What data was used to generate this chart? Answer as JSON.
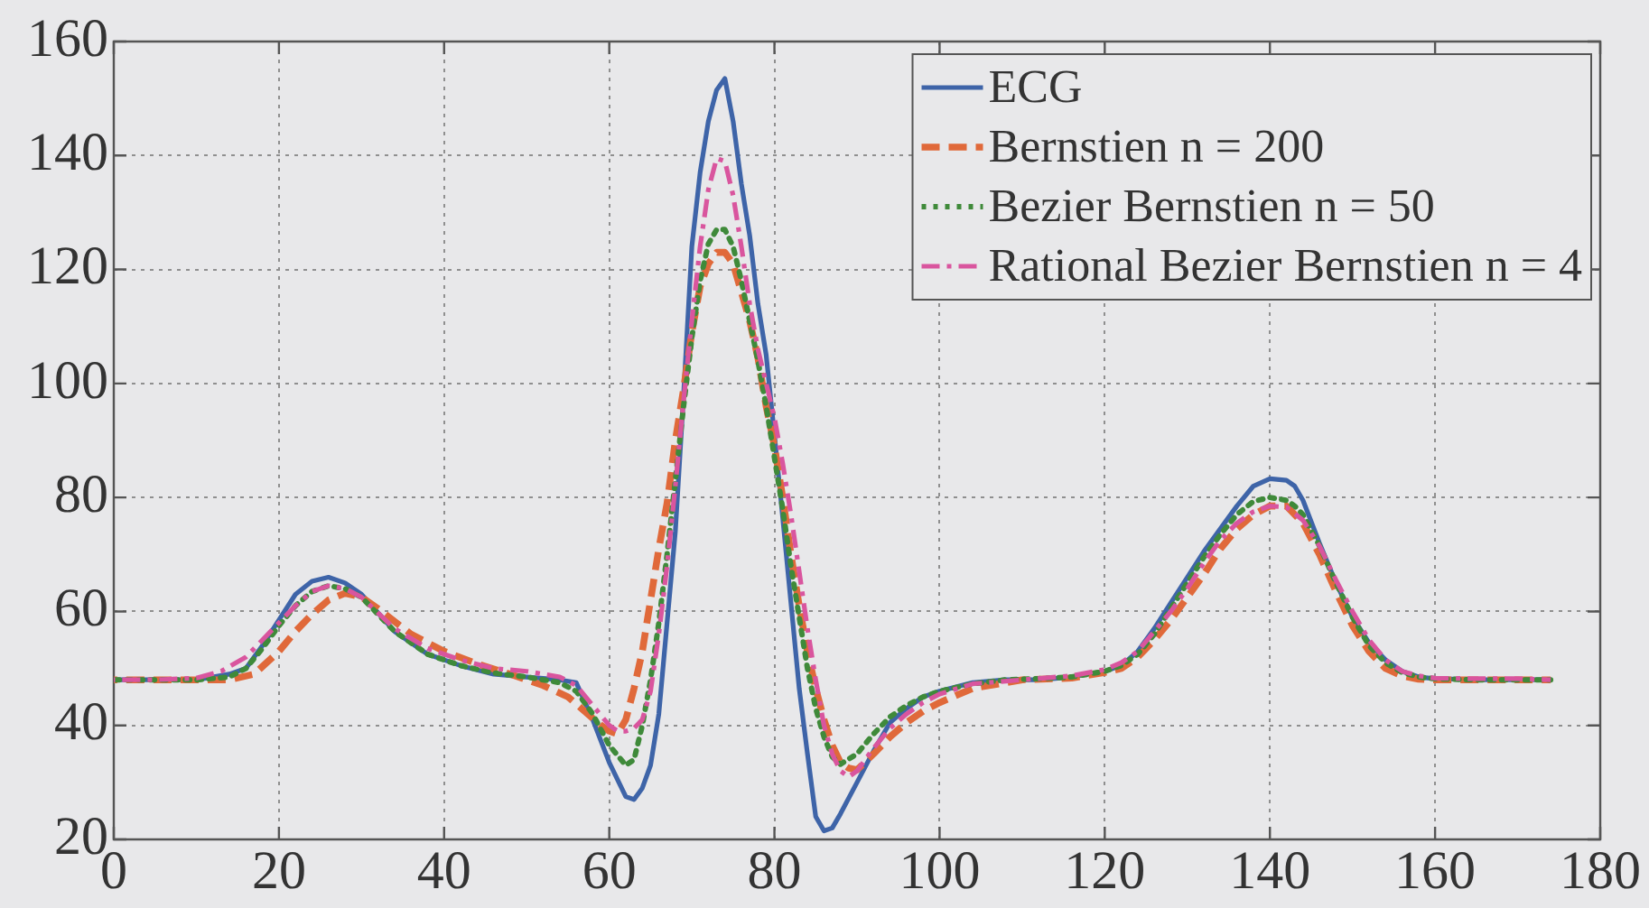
{
  "chart_data": {
    "type": "line",
    "xlim": [
      0,
      180
    ],
    "ylim": [
      20,
      160
    ],
    "xticks": [
      0,
      20,
      40,
      60,
      80,
      100,
      120,
      140,
      160,
      180
    ],
    "yticks": [
      20,
      40,
      60,
      80,
      100,
      120,
      140,
      160
    ],
    "grid": true,
    "legend": "top right",
    "series": [
      {
        "name": "ECG",
        "color": "#3e64a8",
        "line_style": "solid",
        "x": [
          0,
          5,
          10,
          14,
          16,
          18,
          20,
          22,
          24,
          26,
          28,
          30,
          34,
          38,
          42,
          46,
          50,
          54,
          56,
          58,
          60,
          62,
          63,
          64,
          65,
          66,
          67,
          68,
          69,
          70,
          71,
          72,
          73,
          74,
          75,
          76,
          77,
          78,
          79,
          80,
          81,
          82,
          83,
          84,
          85,
          86,
          87,
          88,
          90,
          92,
          94,
          96,
          98,
          100,
          104,
          108,
          112,
          116,
          120,
          122,
          124,
          126,
          128,
          130,
          132,
          134,
          136,
          138,
          140,
          142,
          143,
          144,
          146,
          148,
          150,
          152,
          154,
          156,
          158,
          160,
          165,
          170,
          174
        ],
        "values": [
          48,
          48,
          48,
          49,
          50,
          54,
          58.5,
          63,
          65.3,
          66,
          65,
          63,
          56.5,
          52.5,
          50.5,
          49,
          48.5,
          48,
          47.5,
          41,
          33.5,
          27.5,
          27,
          29,
          33,
          42,
          58,
          74,
          98,
          124,
          137,
          146,
          151.5,
          153.5,
          146,
          135,
          126,
          114,
          105,
          91,
          76.5,
          61.5,
          46.5,
          35,
          24,
          21.5,
          22,
          24.5,
          30,
          35.5,
          40.5,
          43,
          45,
          46,
          47.5,
          48,
          48,
          48.5,
          49.5,
          50.5,
          53,
          57,
          61.5,
          66,
          70.5,
          74.5,
          78.5,
          82,
          83.3,
          83,
          82,
          79.5,
          72,
          65,
          59,
          54.5,
          51.5,
          49.5,
          48.5,
          48.2,
          48,
          48,
          48
        ]
      },
      {
        "name": "Bernstien n = 200",
        "color": "#e0693a",
        "line_style": "dashed",
        "x": [
          0,
          5,
          10,
          14,
          17,
          20,
          22,
          24,
          26,
          28,
          30,
          32,
          36,
          40,
          44,
          48,
          52,
          55,
          57,
          59,
          60,
          61,
          62,
          63,
          64,
          65,
          66,
          67,
          68,
          69,
          70,
          71,
          72,
          73,
          74,
          75,
          76,
          77,
          78,
          79,
          80,
          81,
          82,
          83,
          84,
          85,
          86,
          87,
          88,
          89,
          90,
          92,
          94,
          96,
          98,
          100,
          104,
          110,
          116,
          120,
          122,
          124,
          126,
          128,
          130,
          132,
          134,
          136,
          138,
          140,
          142,
          144,
          146,
          148,
          150,
          152,
          154,
          156,
          158,
          160,
          165,
          170,
          174
        ],
        "values": [
          48,
          48,
          48,
          48,
          49,
          53,
          56.5,
          59.5,
          62,
          63.2,
          62.5,
          60.5,
          56,
          53,
          50.8,
          49,
          47,
          45,
          42.5,
          40,
          39,
          38.5,
          41,
          46.5,
          53,
          62,
          71,
          79,
          90,
          99,
          109,
          117,
          121,
          123,
          123,
          121,
          116,
          111,
          104.5,
          96,
          89,
          80,
          70,
          61,
          53,
          46.5,
          41,
          36.5,
          33.5,
          32.5,
          32.2,
          35,
          38,
          40.5,
          42.5,
          44,
          46.5,
          48,
          48.3,
          49.3,
          50,
          52,
          55,
          58.5,
          62.5,
          66.5,
          71,
          74.5,
          77,
          78.5,
          78.5,
          75.5,
          70,
          63.5,
          57.5,
          53,
          50,
          48.7,
          48.1,
          48,
          48,
          48,
          48
        ]
      },
      {
        "name": "Bezier Bernstien n = 50",
        "color": "#3f8a3a",
        "line_style": "dotted",
        "x": [
          0,
          5,
          10,
          14,
          16,
          18,
          20,
          22,
          24,
          26,
          28,
          30,
          34,
          38,
          42,
          46,
          50,
          54,
          56,
          58,
          60,
          62,
          63,
          64,
          65,
          66,
          67,
          68,
          69,
          70,
          71,
          72,
          73,
          74,
          75,
          76,
          77,
          78,
          79,
          80,
          81,
          82,
          83,
          84,
          85,
          86,
          87,
          88,
          90,
          92,
          94,
          96,
          98,
          100,
          104,
          108,
          112,
          116,
          120,
          122,
          124,
          126,
          128,
          130,
          132,
          134,
          136,
          138,
          140,
          142,
          143,
          144,
          146,
          148,
          150,
          152,
          154,
          156,
          158,
          160,
          165,
          170,
          174
        ],
        "values": [
          48,
          48,
          48,
          48.5,
          50,
          53.5,
          57.5,
          61,
          63.5,
          64.5,
          64,
          62.5,
          56.5,
          52.5,
          50.5,
          49.2,
          48.5,
          47.5,
          46,
          42,
          36.5,
          33,
          34,
          40,
          48,
          58,
          70,
          83,
          96,
          108,
          118,
          124.5,
          127,
          127,
          124,
          118,
          111,
          104,
          96,
          87,
          78,
          68,
          59,
          50,
          43,
          38,
          34.5,
          33.2,
          35,
          38.5,
          41.5,
          43.5,
          45,
          46,
          47.3,
          48,
          48.2,
          48.5,
          49.5,
          50.5,
          52.5,
          56,
          60.5,
          65,
          69.5,
          73.5,
          77,
          79.3,
          80,
          79.5,
          78.5,
          77,
          71.5,
          65,
          59,
          54,
          51,
          49.3,
          48.5,
          48.2,
          48,
          48,
          48
        ]
      },
      {
        "name": "Rational Bezier Bernstien n = 4",
        "color": "#d9559e",
        "line_style": "dashdot",
        "x": [
          0,
          5,
          10,
          13,
          16,
          18,
          20,
          22,
          24,
          26,
          28,
          30,
          34,
          38,
          42,
          46,
          50,
          54,
          56,
          58,
          60,
          61,
          62,
          63,
          64,
          65,
          66,
          67,
          68,
          69,
          70,
          71,
          72,
          73,
          74,
          75,
          76,
          77,
          78,
          79,
          80,
          81,
          82,
          83,
          84,
          85,
          86,
          87,
          88,
          89,
          90,
          92,
          94,
          96,
          98,
          100,
          104,
          110,
          116,
          120,
          122,
          124,
          126,
          128,
          130,
          132,
          134,
          136,
          138,
          140,
          142,
          144,
          146,
          148,
          150,
          152,
          154,
          156,
          158,
          160,
          165,
          170,
          174
        ],
        "values": [
          48,
          48,
          48.3,
          49.5,
          52,
          55,
          58,
          61,
          63.5,
          64.5,
          64,
          62.5,
          57,
          53.5,
          51.5,
          50,
          49.5,
          48.5,
          47,
          43.5,
          40,
          39,
          39,
          39.5,
          41,
          46,
          56,
          68,
          82,
          97,
          111,
          124,
          134,
          139.5,
          139,
          133,
          124,
          114,
          106,
          100,
          94,
          86,
          77,
          67,
          57,
          48,
          40,
          35,
          32,
          31,
          32,
          36,
          39.5,
          42,
          44,
          45.5,
          47.3,
          48,
          48.7,
          49.8,
          51,
          53,
          56.5,
          60,
          64,
          68.5,
          72.5,
          75.5,
          77.5,
          78.5,
          78.3,
          76,
          71.5,
          65.5,
          60,
          55,
          51.5,
          49.5,
          48.7,
          48.3,
          48.2,
          48.2,
          48
        ]
      }
    ]
  }
}
